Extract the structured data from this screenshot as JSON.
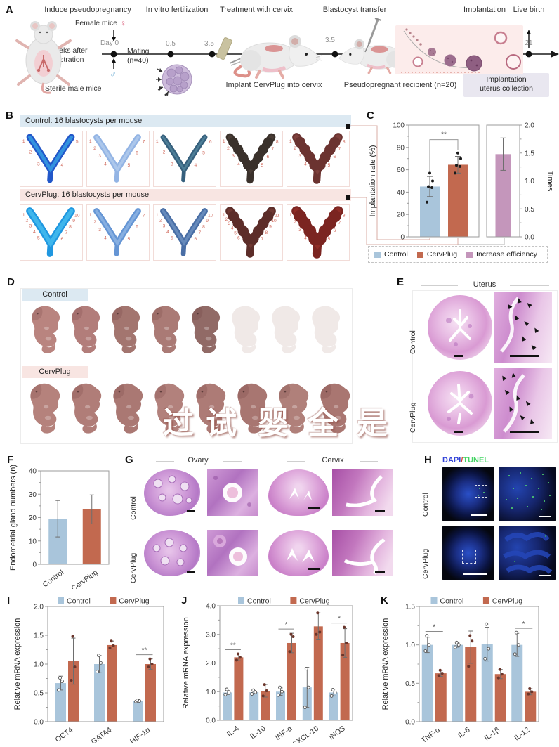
{
  "colors": {
    "control": "#a9c5db",
    "cervplug": "#c2694f",
    "efficiency": "#c496bb",
    "header_blue": "#dce9f2",
    "header_pink": "#f8e5e2"
  },
  "panels": {
    "A": {
      "label": "A",
      "stages": [
        "Induce pseudopregnancy",
        "In vitro fertilization",
        "Treatment with cervix",
        "Blastocyst transfer",
        "Implantation",
        "Live birth"
      ],
      "female_label": "Female mice",
      "female_symbol": "♀",
      "male_symbol": "♂",
      "day0": "Day 0",
      "castration1": "2 weeks after",
      "castration2": "castration",
      "mating1": "Mating",
      "mating2": "(n=40)",
      "sterile": "Sterile male mice",
      "ticks": [
        "0.5",
        "3.5",
        "3.5",
        "5.5",
        "21"
      ],
      "implant_caption": "Implant CervPlug into cervix",
      "recipient_caption": "Pseudopregnant recipient (n=20)",
      "collection1": "Implantation",
      "collection2": "uterus collection"
    },
    "B": {
      "label": "B",
      "rows": [
        {
          "header": "Control: 16 blastocysts per mouse",
          "tiles": [
            {
              "c1": "#2257c9",
              "c2": "#3fb9ef",
              "n": 5,
              "w": 10,
              "bumps": false
            },
            {
              "c1": "#93b4e4",
              "c2": "#bdd3f0",
              "n": 7,
              "w": 9,
              "bumps": false
            },
            {
              "c1": "#36607d",
              "c2": "#5e93a8",
              "n": 6,
              "w": 8,
              "bumps": false
            },
            {
              "c1": "#3a312b",
              "c2": "#54453c",
              "n": 8,
              "w": 12,
              "bumps": true
            },
            {
              "c1": "#6b3330",
              "c2": "#8a4a44",
              "n": 8,
              "w": 13,
              "bumps": true
            }
          ]
        },
        {
          "header": "CervPlug: 16 blastocysts per mouse",
          "tiles": [
            {
              "c1": "#1f97e0",
              "c2": "#55ccf4",
              "n": 10,
              "w": 11,
              "bumps": false
            },
            {
              "c1": "#6595d4",
              "c2": "#9fc1ea",
              "n": 7,
              "w": 9,
              "bumps": false
            },
            {
              "c1": "#496ea5",
              "c2": "#7a9cc9",
              "n": 10,
              "w": 9,
              "bumps": false
            },
            {
              "c1": "#5c2d29",
              "c2": "#7c4038",
              "n": 11,
              "w": 13,
              "bumps": true
            },
            {
              "c1": "#7b2521",
              "c2": "#9c332c",
              "n": 8,
              "w": 15,
              "bumps": true
            }
          ]
        }
      ]
    },
    "D": {
      "label": "D",
      "rows": [
        {
          "tag": "Control",
          "pups": [
            1,
            1,
            1,
            1,
            1,
            0,
            0,
            0
          ]
        },
        {
          "tag": "CervPlug",
          "pups": [
            1,
            1,
            1,
            1,
            1,
            1,
            1,
            1
          ]
        }
      ],
      "palette": [
        [
          "#b9847f",
          "#b27d7a",
          "#a3756f",
          "#aa7a75",
          "#916a66",
          "#efe8e6",
          "#efe8e6",
          "#efe8e6"
        ],
        [
          "#b5827c",
          "#b07d78",
          "#aa7873",
          "#b2817c",
          "#ad7b76",
          "#a87671",
          "#b0807a",
          "#a97671"
        ]
      ],
      "faded_color": "#f0e9e7",
      "watermark": [
        "过",
        "试",
        "婴",
        "全",
        "是"
      ]
    },
    "E": {
      "label": "E",
      "title": "Uterus",
      "rows": [
        "Control",
        "CervPlug"
      ]
    },
    "G": {
      "label": "G",
      "columns": [
        "Ovary",
        "Cervix"
      ],
      "rows": [
        "Control",
        "CervPlug"
      ]
    },
    "H": {
      "label": "H",
      "dapi": "DAPI",
      "slash": "/",
      "tunel": "TUNEL",
      "rows": [
        "Control",
        "CervPlug"
      ]
    },
    "I": {
      "label": "I"
    },
    "J": {
      "label": "J"
    },
    "K": {
      "label": "K"
    },
    "C": {
      "label": "C"
    },
    "F": {
      "label": "F"
    }
  },
  "chart_data": [
    {
      "id": "C",
      "type": "bar",
      "dual": true,
      "left": {
        "label": "Implantation rate (%)",
        "ylim": [
          0,
          100
        ],
        "ticks": [
          {
            "v": 0,
            "t": "0"
          },
          {
            "v": 20,
            "t": "20"
          },
          {
            "v": 40,
            "t": "40"
          },
          {
            "v": 60,
            "t": "60"
          },
          {
            "v": 80,
            "t": "80"
          },
          {
            "v": 100,
            "t": "100"
          }
        ]
      },
      "right": {
        "label": "Times",
        "ylim": [
          0,
          2
        ],
        "ticks": [
          {
            "v": 0,
            "t": "0.0"
          },
          {
            "v": 0.5,
            "t": "0.5"
          },
          {
            "v": 1,
            "t": "1.0"
          },
          {
            "v": 1.5,
            "t": "1.5"
          },
          {
            "v": 2,
            "t": "2.0"
          }
        ]
      },
      "bars": [
        {
          "name": "Control",
          "axis": "left",
          "value": 45,
          "error": 9,
          "points": [
            31,
            44,
            45,
            50,
            57
          ],
          "color": "#a9c5db"
        },
        {
          "name": "CervPlug",
          "axis": "left",
          "value": 64.5,
          "error": 7.5,
          "points": [
            57,
            63,
            64,
            70,
            75
          ],
          "color": "#c2694f"
        },
        {
          "name": "Increase efficiency",
          "axis": "right",
          "value": 1.48,
          "error": 0.29,
          "points": [],
          "color": "#c496bb"
        }
      ],
      "significance": {
        "label": "**",
        "between": [
          "Control",
          "CervPlug"
        ]
      }
    },
    {
      "id": "F",
      "type": "bar",
      "ylabel": "Endometrial gland numbers (n)",
      "ylim": [
        0,
        40
      ],
      "yticks": [
        {
          "v": 0,
          "t": "0"
        },
        {
          "v": 10,
          "t": "10"
        },
        {
          "v": 20,
          "t": "20"
        },
        {
          "v": 30,
          "t": "30"
        },
        {
          "v": 40,
          "t": "40"
        }
      ],
      "categories": [
        "Control",
        "CervPlug"
      ],
      "series": [
        {
          "colors": [
            "#a9c5db",
            "#c2694f"
          ],
          "values": [
            19.5,
            23.5
          ],
          "errors": [
            7.8,
            6.2
          ]
        }
      ]
    },
    {
      "id": "I",
      "type": "bar",
      "ylabel": "Relative mRNA expression",
      "ylim": [
        0,
        2
      ],
      "yticks": [
        {
          "v": 0,
          "t": "0.0"
        },
        {
          "v": 0.5,
          "t": "0.5"
        },
        {
          "v": 1,
          "t": "1.0"
        },
        {
          "v": 1.5,
          "t": "1.5"
        },
        {
          "v": 2,
          "t": "2.0"
        }
      ],
      "categories": [
        "OCT4",
        "GATA4",
        "HIF-1α"
      ],
      "series": [
        {
          "name": "Control",
          "color": "#a9c5db",
          "open": true,
          "values": [
            0.67,
            1.0,
            0.36
          ],
          "errors": [
            0.12,
            0.15,
            0.02
          ],
          "points": [
            [
              0.55,
              0.7,
              0.76
            ],
            [
              0.87,
              1.02,
              1.15
            ],
            [
              0.35,
              0.36,
              0.37
            ]
          ]
        },
        {
          "name": "CervPlug",
          "color": "#c2694f",
          "values": [
            1.05,
            1.33,
            1.0
          ],
          "errors": [
            0.4,
            0.07,
            0.09
          ],
          "points": [
            [
              0.72,
              0.95,
              1.48
            ],
            [
              1.28,
              1.32,
              1.4
            ],
            [
              0.95,
              1.0,
              1.09
            ]
          ]
        }
      ],
      "sig": [
        {
          "cat": "HIF-1α",
          "label": "**"
        }
      ]
    },
    {
      "id": "J",
      "type": "bar",
      "ylabel": "Relative mRNA expression",
      "ylim": [
        0,
        4
      ],
      "yticks": [
        {
          "v": 0,
          "t": "0.0"
        },
        {
          "v": 1,
          "t": "1.0"
        },
        {
          "v": 2,
          "t": "2.0"
        },
        {
          "v": 3,
          "t": "3.0"
        },
        {
          "v": 4,
          "t": "4.0"
        }
      ],
      "categories": [
        "IL-4",
        "IL-10",
        "INF-α",
        "CXCL-10",
        "iNOS"
      ],
      "series": [
        {
          "name": "Control",
          "color": "#a9c5db",
          "open": true,
          "values": [
            0.97,
            0.98,
            1.0,
            1.15,
            0.97
          ],
          "errors": [
            0.07,
            0.06,
            0.13,
            0.7,
            0.12
          ],
          "points": [
            [
              0.9,
              0.97,
              1.08
            ],
            [
              0.92,
              0.98,
              1.05
            ],
            [
              0.88,
              1.0,
              1.15
            ],
            [
              0.45,
              1.15,
              1.8
            ],
            [
              0.85,
              0.97,
              1.07
            ]
          ]
        },
        {
          "name": "CervPlug",
          "color": "#c2694f",
          "values": [
            2.2,
            1.03,
            2.7,
            3.28,
            2.7
          ],
          "errors": [
            0.12,
            0.22,
            0.34,
            0.47,
            0.5
          ],
          "points": [
            [
              2.1,
              2.2,
              2.32
            ],
            [
              0.85,
              1.03,
              1.25
            ],
            [
              2.4,
              2.92,
              3.0
            ],
            [
              3.0,
              3.08,
              3.75
            ],
            [
              2.28,
              2.7,
              3.25
            ]
          ]
        }
      ],
      "sig": [
        {
          "cat": "IL-4",
          "label": "**"
        },
        {
          "cat": "INF-α",
          "label": "*"
        },
        {
          "cat": "iNOS",
          "label": "*"
        }
      ]
    },
    {
      "id": "K",
      "type": "bar",
      "ylabel": "Relative mRNA expression",
      "ylim": [
        0,
        1.5
      ],
      "yticks": [
        {
          "v": 0,
          "t": "0.0"
        },
        {
          "v": 0.5,
          "t": "0.5"
        },
        {
          "v": 1,
          "t": "1.0"
        },
        {
          "v": 1.5,
          "t": "1.5"
        }
      ],
      "categories": [
        "TNF-α",
        "IL-6",
        "IL-1β",
        "IL-12"
      ],
      "series": [
        {
          "name": "Control",
          "color": "#a9c5db",
          "open": true,
          "values": [
            1.0,
            1.0,
            1.01,
            1.0
          ],
          "errors": [
            0.1,
            0.03,
            0.22,
            0.15
          ],
          "points": [
            [
              0.92,
              1.0,
              1.12
            ],
            [
              0.97,
              1.0,
              1.03
            ],
            [
              0.82,
              0.95,
              1.27
            ],
            [
              0.88,
              1.0,
              1.16
            ]
          ]
        },
        {
          "name": "CervPlug",
          "color": "#c2694f",
          "values": [
            0.63,
            0.97,
            0.62,
            0.39
          ],
          "errors": [
            0.04,
            0.21,
            0.06,
            0.04
          ],
          "points": [
            [
              0.6,
              0.63,
              0.67
            ],
            [
              0.72,
              1.05,
              1.12
            ],
            [
              0.57,
              0.62,
              0.68
            ],
            [
              0.36,
              0.39,
              0.43
            ]
          ]
        }
      ],
      "sig": [
        {
          "cat": "TNF-α",
          "label": "*"
        },
        {
          "cat": "IL-12",
          "label": "*"
        }
      ]
    }
  ]
}
